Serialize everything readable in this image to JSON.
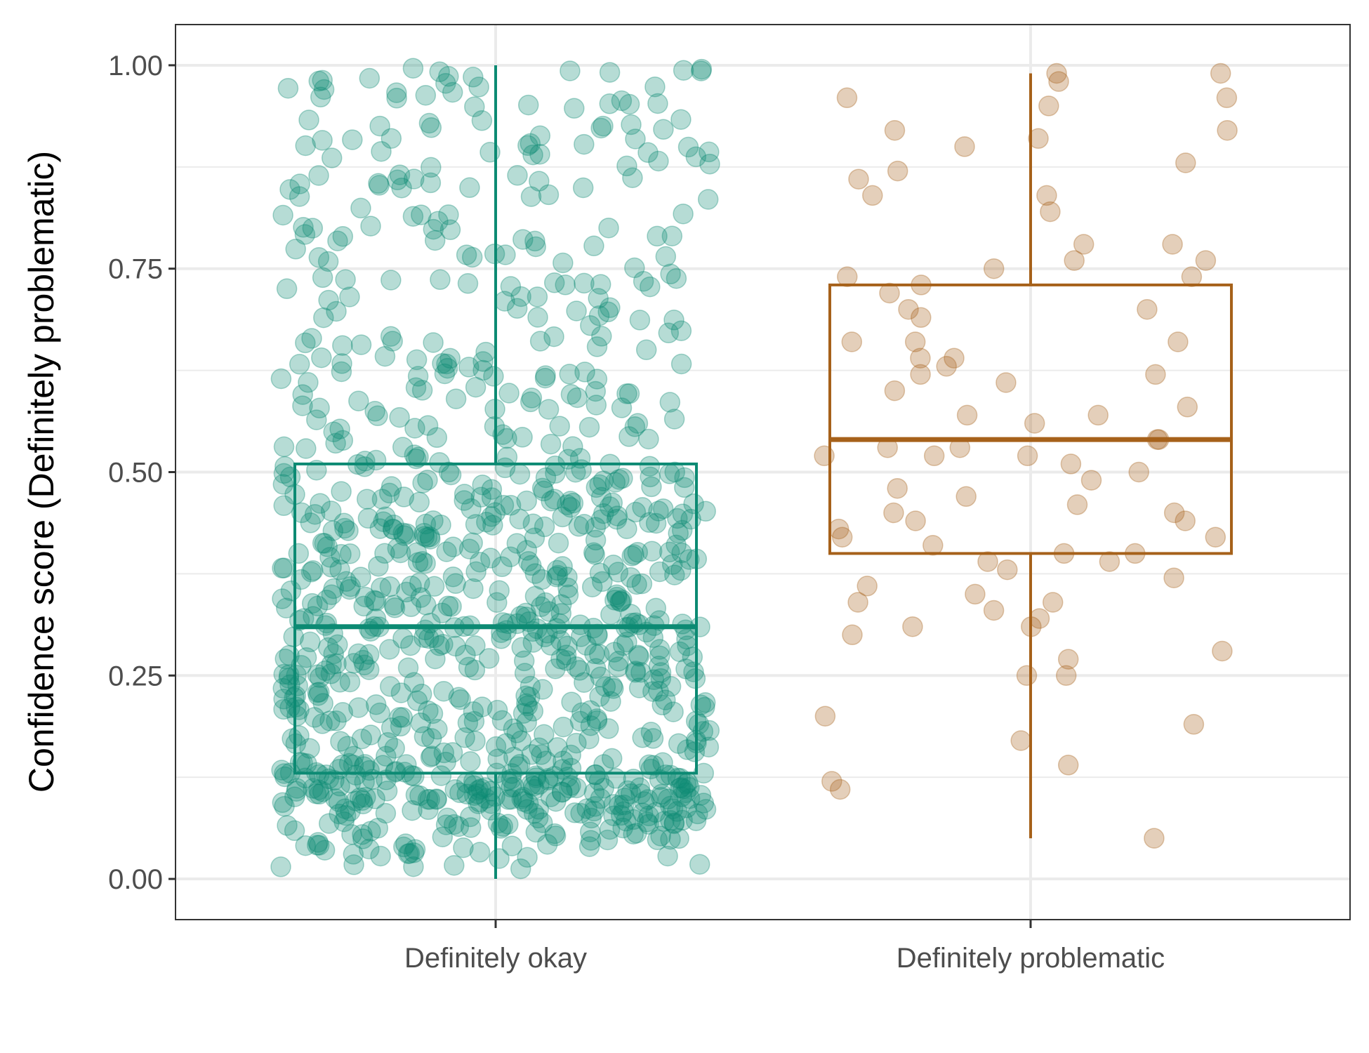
{
  "chart_data": {
    "type": "box",
    "title": "",
    "xlabel": "",
    "ylabel": "Confidence score (Definitely problematic)",
    "categories": [
      "Definitely okay",
      "Definitely problematic"
    ],
    "y_ticks": [
      0.0,
      0.25,
      0.5,
      0.75,
      1.0
    ],
    "y_tick_labels": [
      "0.00",
      "0.25",
      "0.50",
      "0.75",
      "1.00"
    ],
    "ylim": [
      -0.05,
      1.05
    ],
    "grid": true,
    "legend": "none",
    "series": [
      {
        "category": "Definitely okay",
        "color": "#0c8a73",
        "box": {
          "min": 0.0,
          "q1": 0.13,
          "median": 0.31,
          "q3": 0.51,
          "max": 1.0
        },
        "point_count": 1000
      },
      {
        "category": "Definitely problematic",
        "color": "#a6611a",
        "box": {
          "min": 0.05,
          "q1": 0.4,
          "median": 0.54,
          "q3": 0.73,
          "max": 0.99
        },
        "points": [
          0.99,
          0.98,
          0.99,
          0.96,
          0.95,
          0.96,
          0.92,
          0.91,
          0.9,
          0.92,
          0.88,
          0.87,
          0.86,
          0.84,
          0.84,
          0.82,
          0.78,
          0.78,
          0.76,
          0.76,
          0.75,
          0.74,
          0.74,
          0.73,
          0.72,
          0.7,
          0.7,
          0.69,
          0.66,
          0.66,
          0.66,
          0.64,
          0.64,
          0.63,
          0.62,
          0.62,
          0.61,
          0.6,
          0.58,
          0.57,
          0.57,
          0.56,
          0.54,
          0.54,
          0.53,
          0.53,
          0.52,
          0.52,
          0.52,
          0.51,
          0.5,
          0.49,
          0.48,
          0.47,
          0.46,
          0.45,
          0.45,
          0.44,
          0.44,
          0.43,
          0.42,
          0.42,
          0.41,
          0.4,
          0.4,
          0.39,
          0.39,
          0.38,
          0.37,
          0.36,
          0.35,
          0.34,
          0.34,
          0.33,
          0.32,
          0.31,
          0.31,
          0.3,
          0.28,
          0.27,
          0.25,
          0.25,
          0.2,
          0.19,
          0.17,
          0.14,
          0.12,
          0.11,
          0.05
        ]
      }
    ]
  }
}
